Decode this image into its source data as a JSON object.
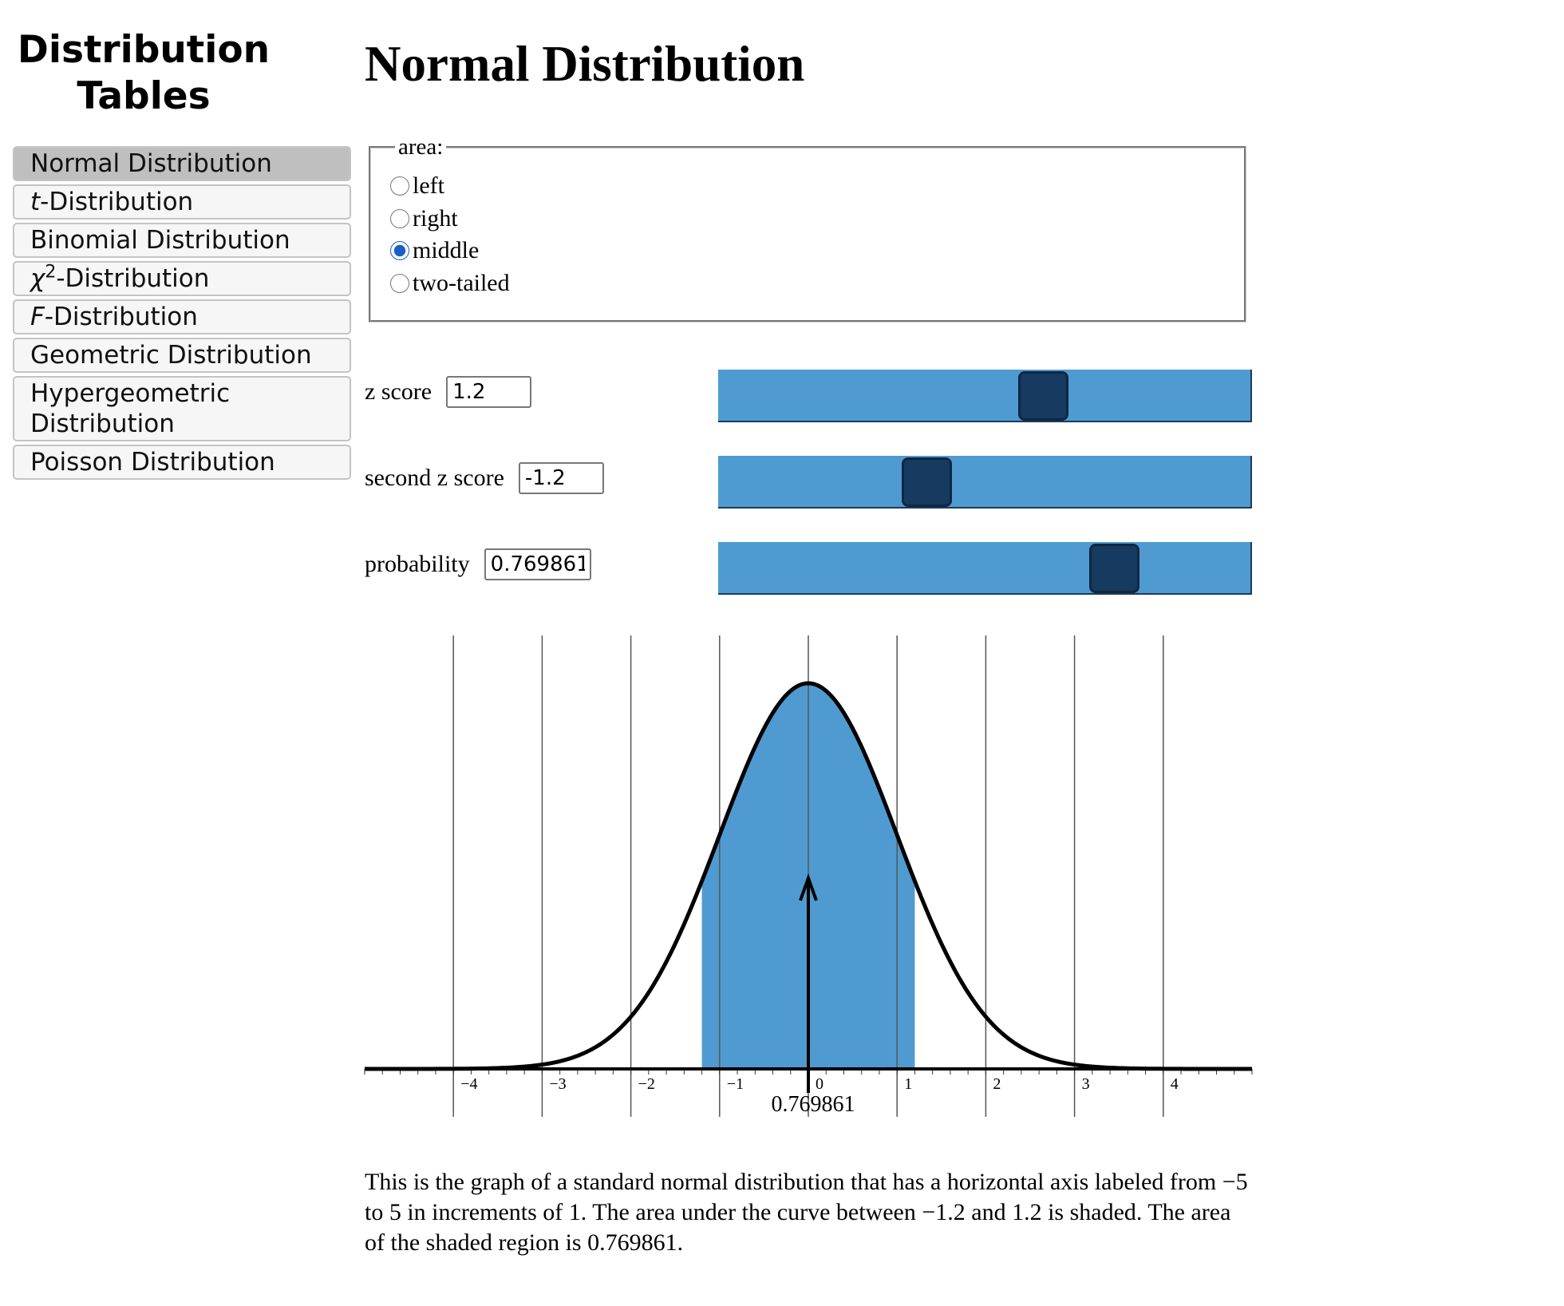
{
  "sidebar": {
    "title": "Distribution Tables",
    "selected": 0,
    "items": [
      {
        "text": "Normal Distribution"
      },
      {
        "italic": "t",
        "text": "-Distribution"
      },
      {
        "text": "Binomial Distribution"
      },
      {
        "italic": "χ",
        "sup": "2",
        "text": "-Distribution"
      },
      {
        "italic": "F",
        "text": "-Distribution"
      },
      {
        "text": "Geometric Distribution"
      },
      {
        "text": "Hypergeometric Distribution"
      },
      {
        "text": "Poisson Distribution"
      }
    ]
  },
  "header": {
    "title": "Normal Distribution"
  },
  "form": {
    "legend": "area:",
    "options": [
      "left",
      "right",
      "middle",
      "two-tailed"
    ],
    "selected": 2,
    "inputs": [
      {
        "label": "z score",
        "value": "1.2"
      },
      {
        "label": "second z score",
        "value": "-1.2"
      },
      {
        "label": "probability",
        "value": "0.769861"
      }
    ]
  },
  "chart_data": {
    "type": "normal-area",
    "xlim": [
      -5,
      5
    ],
    "xticks": [
      {
        "value": -4,
        "label": "−4"
      },
      {
        "value": -3,
        "label": "−3"
      },
      {
        "value": -2,
        "label": "−2"
      },
      {
        "value": -1,
        "label": "−1"
      },
      0,
      1,
      2,
      3,
      4
    ],
    "grid": true,
    "color": "#4f9bd1",
    "shade_from": -1.2,
    "shade_to": 1.2,
    "area": 0.769861,
    "area_label": "0.769861"
  },
  "description": "This is the graph of a standard normal distribution that has a horizontal axis labeled from −5 to 5 in increments of 1. The area under the curve between −1.2 and 1.2 is shaded. The area of the shaded region is 0.769861."
}
